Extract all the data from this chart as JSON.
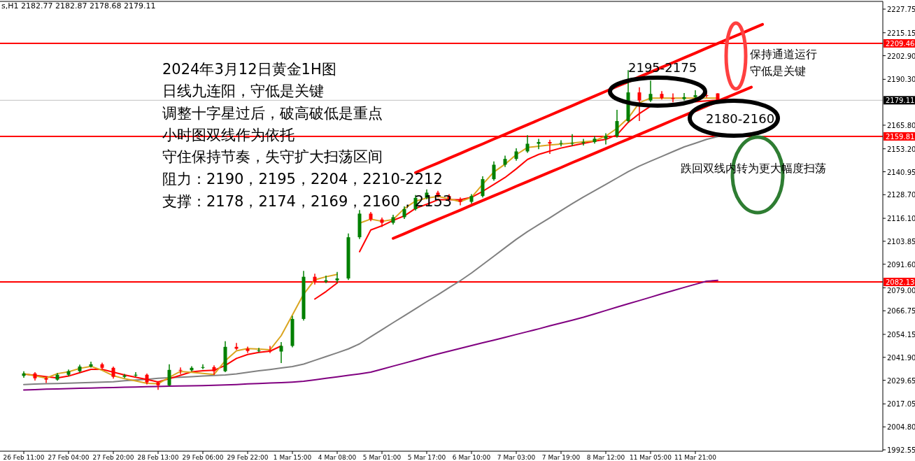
{
  "chart_data": {
    "type": "candlestick",
    "categories": [
      "26 Feb 11:00",
      null,
      null,
      null,
      "27 Feb 04:00",
      null,
      null,
      null,
      "27 Feb 20:00",
      null,
      null,
      null,
      "28 Feb 13:00",
      null,
      null,
      null,
      "29 Feb 06:00",
      null,
      null,
      null,
      "29 Feb 22:00",
      null,
      null,
      null,
      "1 Mar 15:00",
      null,
      null,
      null,
      "4 Mar 08:00",
      null,
      null,
      null,
      "5 Mar 01:00",
      null,
      null,
      null,
      "5 Mar 17:00",
      null,
      null,
      null,
      "6 Mar 10:00",
      null,
      null,
      null,
      "7 Mar 03:00",
      null,
      null,
      null,
      "7 Mar 19:00",
      null,
      null,
      null,
      "8 Mar 12:00",
      null,
      null,
      null,
      "11 Mar 05:00",
      null,
      null,
      null,
      "11 Mar 21:00",
      null,
      null,
      null,
      null,
      null,
      null
    ],
    "ohlc": [
      [
        2032.0,
        2034.5,
        2031.0,
        2033.3
      ],
      [
        2033.3,
        2034.0,
        2029.5,
        2030.7
      ],
      [
        2030.7,
        2031.6,
        2028.2,
        2030.0
      ],
      [
        2030.0,
        2033.5,
        2029.4,
        2032.6
      ],
      [
        2032.6,
        2035.4,
        2031.8,
        2034.5
      ],
      [
        2034.5,
        2038.0,
        2033.8,
        2037.0
      ],
      [
        2037.0,
        2039.6,
        2036.4,
        2038.2
      ],
      [
        2038.2,
        2039.0,
        2035.4,
        2036.3
      ],
      [
        2036.3,
        2037.0,
        2030.5,
        2031.5
      ],
      [
        2031.5,
        2033.1,
        2030.8,
        2032.2
      ],
      [
        2032.2,
        2034.0,
        2031.5,
        2032.6
      ],
      [
        2032.6,
        2033.2,
        2027.5,
        2028.5
      ],
      [
        2028.5,
        2029.2,
        2024.6,
        2027.0
      ],
      [
        2027.0,
        2038.2,
        2026.5,
        2035.2
      ],
      [
        2035.2,
        2036.5,
        2033.0,
        2035.0
      ],
      [
        2035.0,
        2037.2,
        2034.4,
        2036.3
      ],
      [
        2036.3,
        2038.2,
        2035.6,
        2036.7
      ],
      [
        2036.7,
        2037.6,
        2032.5,
        2034.5
      ],
      [
        2034.5,
        2050.5,
        2034.0,
        2047.5
      ],
      [
        2047.5,
        2049.6,
        2045.8,
        2046.5
      ],
      [
        2046.5,
        2047.6,
        2044.3,
        2045.3
      ],
      [
        2045.3,
        2047.0,
        2044.6,
        2045.6
      ],
      [
        2045.6,
        2048.0,
        2044.2,
        2045.0
      ],
      [
        2045.0,
        2050.0,
        2038.8,
        2048.0
      ],
      [
        2048.0,
        2064.0,
        2047.2,
        2062.4
      ],
      [
        2062.4,
        2088.0,
        2061.5,
        2084.9
      ],
      [
        2084.9,
        2086.5,
        2080.8,
        2082.3
      ],
      [
        2082.3,
        2085.5,
        2081.5,
        2083.0
      ],
      [
        2083.0,
        2087.5,
        2081.8,
        2084.0
      ],
      [
        2084.0,
        2108.0,
        2083.2,
        2106.0
      ],
      [
        2106.0,
        2120.5,
        2105.0,
        2118.6
      ],
      [
        2118.6,
        2119.5,
        2114.5,
        2115.5
      ],
      [
        2115.5,
        2116.5,
        2111.5,
        2113.7
      ],
      [
        2113.7,
        2118.0,
        2112.8,
        2116.7
      ],
      [
        2116.7,
        2122.5,
        2115.8,
        2121.0
      ],
      [
        2121.0,
        2128.5,
        2120.2,
        2127.0
      ],
      [
        2127.0,
        2131.5,
        2126.3,
        2129.8
      ],
      [
        2129.8,
        2130.8,
        2127.2,
        2128.0
      ],
      [
        2128.0,
        2129.0,
        2125.5,
        2126.3
      ],
      [
        2126.3,
        2127.2,
        2123.0,
        2124.9
      ],
      [
        2124.9,
        2129.0,
        2124.0,
        2128.0
      ],
      [
        2128.0,
        2138.5,
        2127.2,
        2137.0
      ],
      [
        2137.0,
        2146.5,
        2136.2,
        2144.7
      ],
      [
        2144.7,
        2149.5,
        2143.5,
        2147.8
      ],
      [
        2147.8,
        2153.5,
        2146.8,
        2151.8
      ],
      [
        2151.8,
        2160.5,
        2151.0,
        2155.9
      ],
      [
        2155.9,
        2158.5,
        2153.0,
        2156.8
      ],
      [
        2156.8,
        2158.0,
        2150.5,
        2156.0
      ],
      [
        2156.0,
        2157.8,
        2154.5,
        2156.3
      ],
      [
        2156.3,
        2161.0,
        2154.8,
        2156.3
      ],
      [
        2156.3,
        2158.5,
        2155.0,
        2156.8
      ],
      [
        2156.8,
        2160.0,
        2156.0,
        2158.6
      ],
      [
        2158.6,
        2161.5,
        2155.5,
        2160.0
      ],
      [
        2160.0,
        2174.0,
        2159.2,
        2168.0
      ],
      [
        2168.0,
        2195.2,
        2167.2,
        2183.3
      ],
      [
        2183.3,
        2186.0,
        2168.0,
        2179.0
      ],
      [
        2179.0,
        2189.6,
        2178.2,
        2182.5
      ],
      [
        2182.5,
        2184.0,
        2179.5,
        2180.3
      ],
      [
        2180.3,
        2182.8,
        2178.0,
        2179.8
      ],
      [
        2179.8,
        2183.0,
        2179.0,
        2180.8
      ],
      [
        2180.8,
        2184.5,
        2180.0,
        2181.8
      ],
      [
        2181.8,
        2183.5,
        2180.5,
        2181.4
      ],
      [
        2182.77,
        2182.87,
        2178.68,
        2179.11
      ],
      null,
      null,
      null,
      null
    ],
    "series": [
      {
        "type": "line",
        "color": "#800080",
        "values": [
          2024.5,
          2024.7,
          2024.9,
          2025.0,
          2025.2,
          2025.4,
          2025.5,
          2025.7,
          2025.8,
          2026.0,
          2026.1,
          2026.2,
          2026.3,
          2026.5,
          2026.6,
          2026.7,
          2026.8,
          2027.0,
          2027.2,
          2027.4,
          2027.7,
          2027.9,
          2028.2,
          2028.4,
          2028.7,
          2029.1,
          2029.9,
          2030.7,
          2031.5,
          2032.3,
          2033.1,
          2034.0,
          2035.6,
          2037.2,
          2038.8,
          2040.4,
          2042.1,
          2043.7,
          2045.2,
          2046.7,
          2048.2,
          2049.7,
          2051.1,
          2052.6,
          2054.1,
          2055.6,
          2057.1,
          2058.7,
          2060.2,
          2061.7,
          2063.3,
          2065.1,
          2066.9,
          2068.7,
          2070.5,
          2072.2,
          2074.0,
          2075.8,
          2077.5,
          2079.2,
          2080.9,
          2082.5,
          2083.0,
          null,
          null,
          null,
          null
        ]
      },
      {
        "type": "line",
        "color": "#808080",
        "values": [
          2027.4,
          2027.6,
          2027.8,
          2027.9,
          2028.1,
          2028.3,
          2028.5,
          2028.7,
          2028.9,
          2029.4,
          2029.8,
          2030.2,
          2030.7,
          2031.0,
          2031.3,
          2031.6,
          2031.9,
          2032.2,
          2032.5,
          2033.1,
          2033.9,
          2034.7,
          2035.4,
          2036.2,
          2037.0,
          2038.3,
          2040.3,
          2042.3,
          2044.3,
          2046.4,
          2049.1,
          2052.9,
          2056.6,
          2060.4,
          2064.1,
          2067.8,
          2071.6,
          2075.3,
          2079.1,
          2082.8,
          2086.9,
          2091.4,
          2095.9,
          2100.4,
          2104.9,
          2109.0,
          2112.7,
          2116.4,
          2120.2,
          2123.9,
          2127.5,
          2130.8,
          2134.2,
          2137.6,
          2141.0,
          2144.0,
          2146.6,
          2149.1,
          2151.7,
          2154.2,
          2156.2,
          2158.2,
          2159.7,
          null,
          null,
          null,
          null
        ]
      },
      {
        "type": "line",
        "color": "#ff0000",
        "values": [
          2033.0,
          2032.3,
          2031.6,
          2030.9,
          2031.9,
          2033.7,
          2035.5,
          2035.5,
          2034.0,
          2032.5,
          2031.3,
          2030.1,
          2028.8,
          2030.5,
          2032.3,
          2034.2,
          2034.7,
          2035.0,
          2037.6,
          2041.3,
          2043.4,
          2044.5,
          2045.2,
          2048.0,
          null,
          null,
          2073.0,
          2077.0,
          2081.6,
          null,
          2098.3,
          2109.9,
          2112.1,
          2115.0,
          2117.4,
          2121.4,
          2123.6,
          2126.0,
          2126.0,
          2126.0,
          2127.3,
          2130.5,
          2134.2,
          2137.9,
          2142.5,
          2147.5,
          2150.2,
          2152.0,
          2153.6,
          2154.9,
          2156.1,
          2157.3,
          2158.2,
          2160.7,
          2167.3,
          2172.0,
          2175.9,
          null,
          null,
          null,
          2178.3,
          2178.8,
          2179.1,
          null,
          null,
          null,
          null
        ]
      },
      {
        "type": "line",
        "color": "#daa520",
        "values": [
          2033.2,
          2032.0,
          2030.8,
          2033.2,
          2034.2,
          2036.0,
          2037.1,
          2035.0,
          2032.1,
          2030.5,
          2029.3,
          2028.0,
          2027.8,
          2031.2,
          2034.4,
          2033.9,
          2033.3,
          2032.8,
          2040.1,
          2045.4,
          2046.6,
          2046.3,
          2045.9,
          2053.5,
          2064.5,
          2075.6,
          2083.3,
          2084.9,
          2086.2,
          null,
          2113.5,
          2115.7,
          2114.5,
          2115.5,
          2121.3,
          2125.3,
          2126.9,
          2127.8,
          2126.5,
          2125.0,
          2127.3,
          2134.3,
          2140.8,
          2145.0,
          2150.1,
          2153.9,
          2154.6,
          2155.2,
          2155.7,
          2156.3,
          2156.9,
          2157.5,
          2160.0,
          2164.1,
          2169.6,
          2177.8,
          2180.3,
          2180.3,
          2180.3,
          2180.3,
          2180.3,
          2180.3,
          2180.3,
          null,
          null,
          null,
          null
        ]
      },
      {
        "type": "line",
        "color": "#ff0000",
        "values": [
          null,
          null,
          null,
          null,
          null,
          null,
          null,
          null,
          null,
          null,
          null,
          null,
          null,
          null,
          null,
          null,
          null,
          null,
          null,
          null,
          null,
          null,
          null,
          null,
          null,
          null,
          null,
          null,
          null,
          null,
          null,
          null,
          null,
          null,
          null,
          2140.5,
          2143.1,
          2145.6,
          2148.2,
          2150.7,
          2153.3,
          2155.8,
          2158.4,
          2160.9,
          2163.5,
          2166.0,
          2168.6,
          2171.1,
          2173.7,
          2176.2,
          2178.8,
          2181.3,
          2183.9,
          2186.5,
          2189.0,
          2191.6,
          2194.1,
          2196.7,
          2199.2,
          2201.8,
          2204.3,
          2206.9,
          2209.4,
          2212.0,
          2214.5,
          2217.1,
          2219.6
        ]
      },
      {
        "type": "line",
        "color": "#ff0000",
        "values": [
          null,
          null,
          null,
          null,
          null,
          null,
          null,
          null,
          null,
          null,
          null,
          null,
          null,
          null,
          null,
          null,
          null,
          null,
          null,
          null,
          null,
          null,
          null,
          null,
          null,
          null,
          null,
          null,
          null,
          null,
          null,
          null,
          null,
          2105.4,
          2107.9,
          2110.5,
          2113.0,
          2115.5,
          2118.0,
          2120.5,
          2123.1,
          2125.6,
          2128.1,
          2130.6,
          2133.2,
          2135.7,
          2138.2,
          2140.7,
          2143.2,
          2145.8,
          2148.3,
          2150.8,
          2153.3,
          2155.9,
          2158.4,
          2160.9,
          2163.4,
          2165.9,
          2168.5,
          2171.0,
          2173.5,
          2176.0,
          2178.6,
          2181.1,
          2183.6,
          2186.1,
          null
        ]
      }
    ],
    "ylim": [
      1991.8,
      2231.5
    ],
    "yticks": [
      {
        "value": 2227.75,
        "label": "2227.75"
      },
      {
        "value": 2215.15,
        "label": "2215.15"
      },
      {
        "value": 2202.9,
        "label": "2202.90"
      },
      {
        "value": 2190.3,
        "label": "2190.30"
      },
      {
        "value": 2165.8,
        "label": "2165.80"
      },
      {
        "value": 2153.2,
        "label": "2153.20"
      },
      {
        "value": 2140.95,
        "label": "2140.95"
      },
      {
        "value": 2128.7,
        "label": "2128.70"
      },
      {
        "value": 2116.1,
        "label": "2116.10"
      },
      {
        "value": 2103.85,
        "label": "2103.85"
      },
      {
        "value": 2091.6,
        "label": "2091.60"
      },
      {
        "value": 2079.0,
        "label": "2079.00"
      },
      {
        "value": 2066.75,
        "label": "2066.75"
      },
      {
        "value": 2054.15,
        "label": "2054.15"
      },
      {
        "value": 2041.9,
        "label": "2041.90"
      },
      {
        "value": 2029.65,
        "label": "2029.65"
      },
      {
        "value": 2017.05,
        "label": "2017.05"
      },
      {
        "value": 2004.8,
        "label": "2004.80"
      },
      {
        "value": 1992.55,
        "label": "1992.55"
      }
    ],
    "ref_lines": [
      {
        "axis": "y",
        "value": 2209.46,
        "label": "2209.46",
        "color": "#ff0000"
      },
      {
        "axis": "y",
        "value": 2179.11,
        "label": "2179.11",
        "color": "#c0c0c0"
      },
      {
        "axis": "y",
        "value": 2159.81,
        "label": "2159.81",
        "color": "#ff0000"
      },
      {
        "axis": "y",
        "value": 2082.13,
        "label": "2082.13",
        "color": "#ff0000"
      }
    ],
    "annotations": [
      "s,H1  2182.77 2182.87 2178.68 2179.11",
      "2024年3月12日黄金1H图",
      "日线九连阳，守低是关键",
      "调整十字星过后，破高破低是重点",
      "小时图双线作为依托",
      "守住保持节奏，失守扩大扫荡区间",
      "阻力：2190，2195，2204，2210-2212",
      "支撑：2178，2174，2169，2160，2153",
      "2195-2175",
      "2180-2160",
      "保持通道运行",
      "守低是关键",
      "跌回双线内转为更大幅度扫荡"
    ]
  }
}
